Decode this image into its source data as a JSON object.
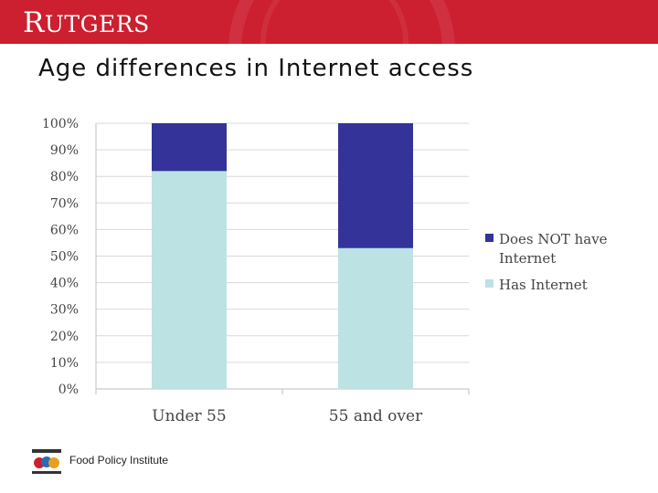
{
  "header": {
    "logo_cap": "R",
    "logo_rest": "UTGERS",
    "title": "Age differences in Internet access"
  },
  "footer": {
    "institute": "Food Policy Institute"
  },
  "colors": {
    "banner": "#cc1f2f",
    "has_internet": "#bde2e3",
    "no_internet": "#333399",
    "grid": "#d9d9d9"
  },
  "chart_data": {
    "type": "bar",
    "stacked": true,
    "percent": true,
    "categories": [
      "Under 55",
      "55 and over"
    ],
    "series": [
      {
        "name": "Has Internet",
        "values": [
          82,
          53
        ],
        "color": "#bde2e3"
      },
      {
        "name": "Does NOT have Internet",
        "values": [
          18,
          47
        ],
        "color": "#333399"
      }
    ],
    "ylim": [
      0,
      100
    ],
    "yticks": [
      "0%",
      "10%",
      "20%",
      "30%",
      "40%",
      "50%",
      "60%",
      "70%",
      "80%",
      "90%",
      "100%"
    ],
    "legend": {
      "position": "right",
      "entries": [
        {
          "lines": [
            "Does NOT have",
            "Internet"
          ],
          "color": "#333399"
        },
        {
          "lines": [
            "Has Internet"
          ],
          "color": "#bde2e3"
        }
      ]
    },
    "grid": true
  }
}
